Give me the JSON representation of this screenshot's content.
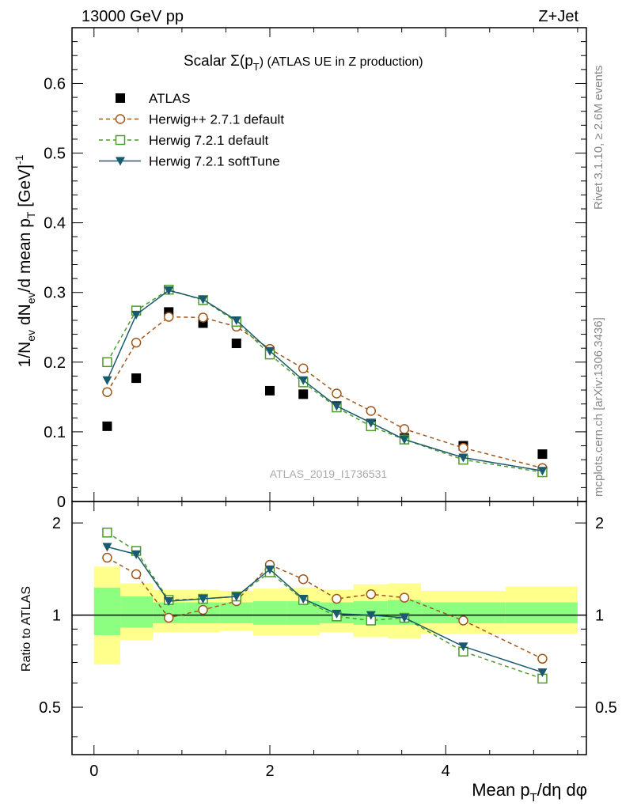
{
  "header": {
    "left": "13000 GeV pp",
    "right": "Z+Jet"
  },
  "side_labels": {
    "rivet": "Rivet 3.1.10, ≥ 2.6M events",
    "mcplots": "mcplots.cern.ch [arXiv:1306.3436]"
  },
  "watermark": "ATLAS_2019_I1736531",
  "chart_data": {
    "type": "scatter",
    "title_prefix": "Scalar Σ(p",
    "title_sub": "T",
    "title_suffix": ") (ATLAS UE in Z production)",
    "ylabel": "1/N_ev dN_ev/d mean p_T [GeV]^-1",
    "ratio_ylabel": "Ratio to ATLAS",
    "xlabel_main": "Mean p",
    "xlabel_sub": "T",
    "xlabel_tail": "/dη dφ",
    "xlim": [
      -0.25,
      5.6
    ],
    "ylim": [
      0,
      0.68
    ],
    "ratio_ylim": [
      0.35,
      2.35
    ],
    "xticks": [
      "0",
      "2",
      "4"
    ],
    "yticks": [
      "0.1",
      "0.2",
      "0.3",
      "0.4",
      "0.5",
      "0.6"
    ],
    "ratio_yticks": [
      "0.5",
      "1",
      "2"
    ],
    "x": [
      0.15,
      0.48,
      0.85,
      1.24,
      1.62,
      2.0,
      2.38,
      2.76,
      3.15,
      3.53,
      4.2,
      5.1
    ],
    "bin_edges": [
      0,
      0.3,
      0.67,
      1.04,
      1.43,
      1.81,
      2.19,
      2.57,
      2.95,
      3.34,
      3.72,
      4.68,
      5.5
    ],
    "band_inner": [
      [
        0.86,
        1.23
      ],
      [
        0.91,
        1.15
      ],
      [
        0.94,
        1.1
      ],
      [
        0.94,
        1.1
      ],
      [
        0.94,
        1.1
      ],
      [
        0.93,
        1.11
      ],
      [
        0.93,
        1.11
      ],
      [
        0.94,
        1.1
      ],
      [
        0.93,
        1.11
      ],
      [
        0.93,
        1.12
      ],
      [
        0.94,
        1.1
      ],
      [
        0.94,
        1.1
      ]
    ],
    "band_outer": [
      [
        0.69,
        1.44
      ],
      [
        0.83,
        1.27
      ],
      [
        0.88,
        1.21
      ],
      [
        0.88,
        1.21
      ],
      [
        0.89,
        1.2
      ],
      [
        0.86,
        1.22
      ],
      [
        0.86,
        1.23
      ],
      [
        0.88,
        1.21
      ],
      [
        0.85,
        1.26
      ],
      [
        0.84,
        1.27
      ],
      [
        0.87,
        1.2
      ],
      [
        0.87,
        1.24
      ]
    ],
    "series": [
      {
        "name": "ATLAS",
        "marker": "filled-square",
        "color": "#000000",
        "values": [
          0.108,
          0.177,
          0.272,
          0.256,
          0.227,
          0.159,
          0.154,
          0.137,
          0.112,
          0.091,
          0.08,
          0.068
        ]
      },
      {
        "name": "Herwig++ 2.7.1 default",
        "marker": "open-circle",
        "line": "dashed",
        "color": "#a0571c",
        "values": [
          0.157,
          0.228,
          0.265,
          0.264,
          0.251,
          0.219,
          0.191,
          0.155,
          0.13,
          0.104,
          0.077,
          0.048
        ],
        "ratio": [
          1.54,
          1.36,
          0.98,
          1.04,
          1.11,
          1.46,
          1.31,
          1.13,
          1.17,
          1.14,
          0.96,
          0.72
        ]
      },
      {
        "name": "Herwig 7.2.1 default",
        "marker": "open-square",
        "line": "dashed",
        "color": "#4e9a2a",
        "values": [
          0.2,
          0.274,
          0.304,
          0.289,
          0.258,
          0.211,
          0.171,
          0.135,
          0.108,
          0.089,
          0.06,
          0.042
        ],
        "ratio": [
          1.86,
          1.62,
          1.12,
          1.13,
          1.15,
          1.38,
          1.12,
          0.99,
          0.96,
          0.98,
          0.76,
          0.62
        ]
      },
      {
        "name": "Herwig 7.2.1 softTune",
        "marker": "filled-triangle-down",
        "line": "solid",
        "color": "#1a5a6e",
        "values": [
          0.174,
          0.268,
          0.303,
          0.29,
          0.26,
          0.216,
          0.174,
          0.137,
          0.113,
          0.089,
          0.063,
          0.044
        ],
        "ratio": [
          1.67,
          1.58,
          1.11,
          1.13,
          1.15,
          1.41,
          1.13,
          1.01,
          1.0,
          0.98,
          0.79,
          0.65
        ]
      }
    ]
  }
}
